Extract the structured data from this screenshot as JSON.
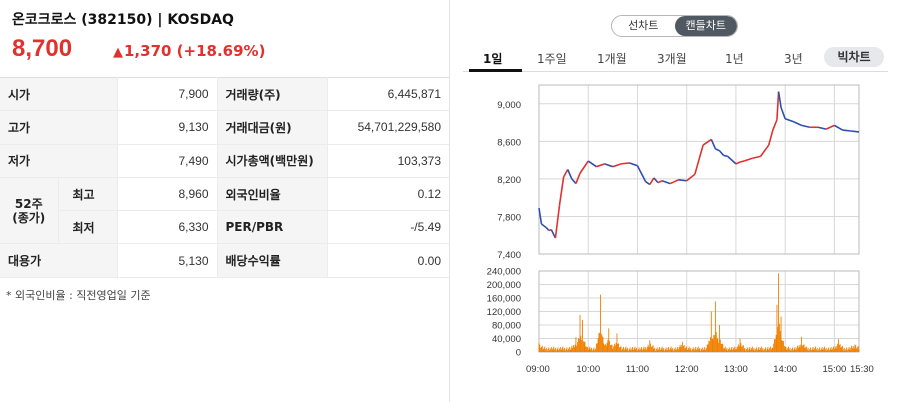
{
  "stock": {
    "title": "온코크로스 (382150) | KOSDAQ",
    "price": "8,700",
    "change_symbol": "▲",
    "change": "1,370 (+18.69%)"
  },
  "info": {
    "open_label": "시가",
    "open": "7,900",
    "volume_label": "거래량(주)",
    "volume": "6,445,871",
    "high_label": "고가",
    "high": "9,130",
    "amount_label": "거래대금(원)",
    "amount": "54,701,229,580",
    "low_label": "저가",
    "low": "7,490",
    "mcap_label": "시가총액(백만원)",
    "mcap": "103,373",
    "w52_label": "52주 (종가)",
    "w52_high_label": "최고",
    "w52_high": "8,960",
    "foreign_label": "외국인비율",
    "foreign": "0.12",
    "w52_low_label": "최저",
    "w52_low": "6,330",
    "per_label": "PER/PBR",
    "per": "-/5.49",
    "sub_label": "대용가",
    "sub": "5,130",
    "div_label": "배당수익률",
    "div": "0.00"
  },
  "footnote": "* 외국인비율 : 직전영업일 기준",
  "chart_toggle": {
    "line": "선차트",
    "candle": "캔들차트",
    "selected": "캔들차트"
  },
  "period_tabs": [
    "1일",
    "1주일",
    "1개월",
    "3개월",
    "1년",
    "3년"
  ],
  "active_tab": "1일",
  "bit_chart": "빅차트",
  "colors": {
    "up": "#e0312e",
    "down": "#2f4fb0",
    "volume": "#f08000",
    "accent": "#111111"
  },
  "chart_data": [
    {
      "type": "line",
      "x_ticks": [
        "09:00",
        "10:00",
        "11:00",
        "12:00",
        "13:00",
        "14:00",
        "15:00",
        "15:30"
      ],
      "y_ticks": [
        "9,000",
        "8,600",
        "8,200",
        "7,800",
        "7,400"
      ],
      "ylim": [
        7400,
        9200
      ],
      "grid": true,
      "series": [
        {
          "x": [
            "09:00",
            "09:03",
            "09:06",
            "09:09",
            "09:12",
            "09:15",
            "09:20",
            "09:25",
            "09:30",
            "09:35",
            "09:40",
            "09:45",
            "09:50",
            "10:00",
            "10:10",
            "10:20",
            "10:30",
            "10:40",
            "10:50",
            "11:00",
            "11:10",
            "11:15",
            "11:20",
            "11:25",
            "11:30",
            "11:40",
            "11:50",
            "12:00",
            "12:10",
            "12:20",
            "12:30",
            "12:35",
            "12:40",
            "12:45",
            "12:50",
            "13:00",
            "13:05",
            "13:10",
            "13:20",
            "13:30",
            "13:40",
            "13:45",
            "13:50",
            "13:52",
            "13:55",
            "14:00",
            "14:10",
            "14:20",
            "14:30",
            "14:40",
            "14:50",
            "15:00",
            "15:10",
            "15:20",
            "15:30"
          ],
          "values": [
            7890,
            7720,
            7700,
            7680,
            7650,
            7660,
            7570,
            7920,
            8220,
            8300,
            8200,
            8150,
            8260,
            8390,
            8330,
            8360,
            8330,
            8360,
            8370,
            8340,
            8170,
            8140,
            8210,
            8160,
            8180,
            8150,
            8190,
            8180,
            8250,
            8560,
            8620,
            8520,
            8500,
            8450,
            8440,
            8360,
            8380,
            8390,
            8420,
            8440,
            8560,
            8720,
            8830,
            9130,
            8960,
            8840,
            8810,
            8770,
            8750,
            8750,
            8730,
            8770,
            8720,
            8710,
            8700
          ]
        }
      ]
    },
    {
      "type": "bar",
      "x_ticks": [
        "09:00",
        "10:00",
        "11:00",
        "12:00",
        "13:00",
        "14:00",
        "15:00",
        "15:30"
      ],
      "y_ticks": [
        "240,000",
        "200,000",
        "160,000",
        "120,000",
        "80,000",
        "40,000",
        "0"
      ],
      "ylim": [
        0,
        240000
      ],
      "series": [
        {
          "name": "거래량",
          "spikes": [
            {
              "x": "09:00",
              "value": 28000
            },
            {
              "x": "09:45",
              "value": 44000
            },
            {
              "x": "09:50",
              "value": 110000
            },
            {
              "x": "09:53",
              "value": 95000
            },
            {
              "x": "10:15",
              "value": 170000
            },
            {
              "x": "10:25",
              "value": 70000
            },
            {
              "x": "10:35",
              "value": 55000
            },
            {
              "x": "11:15",
              "value": 35000
            },
            {
              "x": "11:55",
              "value": 30000
            },
            {
              "x": "12:30",
              "value": 120000
            },
            {
              "x": "12:35",
              "value": 150000
            },
            {
              "x": "12:40",
              "value": 80000
            },
            {
              "x": "13:05",
              "value": 40000
            },
            {
              "x": "13:50",
              "value": 140000
            },
            {
              "x": "13:52",
              "value": 233000
            },
            {
              "x": "13:55",
              "value": 105000
            },
            {
              "x": "14:20",
              "value": 45000
            },
            {
              "x": "15:05",
              "value": 38000
            },
            {
              "x": "15:25",
              "value": 22000
            }
          ]
        }
      ]
    }
  ]
}
